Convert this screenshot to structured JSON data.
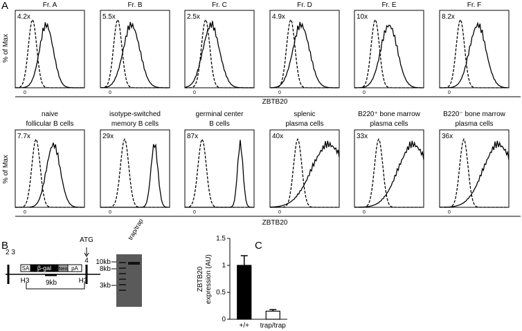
{
  "panel_a": {
    "label": "A",
    "y_label": "% of Max",
    "x_label": "ZBTB20",
    "axis_zero": "0",
    "row1": [
      {
        "title": "Fr. A",
        "fold": "4.2x"
      },
      {
        "title": "Fr. B",
        "fold": "5.5x"
      },
      {
        "title": "Fr. C",
        "fold": "2.5x"
      },
      {
        "title": "Fr. D",
        "fold": "4.9x"
      },
      {
        "title": "Fr. E",
        "fold": "10x"
      },
      {
        "title": "Fr. F",
        "fold": "8.2x"
      }
    ],
    "row2": [
      {
        "title": [
          "naive",
          "follicular B cells"
        ],
        "fold": "7.7x"
      },
      {
        "title": [
          "isotype-switched",
          "memory B cells"
        ],
        "fold": "29x"
      },
      {
        "title": [
          "germinal center",
          "B cells"
        ],
        "fold": "87x"
      },
      {
        "title": [
          "splenic",
          "plasma cells"
        ],
        "fold": "40x"
      },
      {
        "title": [
          "B220⁺ bone marrow",
          "plasma cells"
        ],
        "fold": "33x"
      },
      {
        "title": [
          "B220⁻ bone marrow",
          "plasma cells"
        ],
        "fold": "36x"
      }
    ]
  },
  "panel_b": {
    "label": "B",
    "exons_left": "2 3",
    "atg": "ATG",
    "exon_right": "4",
    "sa": "SA",
    "bgal": "β-gal",
    "neo": "Neo",
    "pa": "pA",
    "h3_left": "H3",
    "h3_right": "H3",
    "fragment": "9kb",
    "lane": "trap/trap",
    "markers": [
      "10kb",
      "8kb",
      "3kb"
    ]
  },
  "chart_data": {
    "type": "bar",
    "label": "C",
    "y_label": [
      "ZBTB20",
      "expression (AU)"
    ],
    "categories": [
      "+/+",
      "trap/trap"
    ],
    "values": [
      1,
      0.15
    ],
    "errors": [
      0.18,
      0.03
    ],
    "colors": [
      "#000000",
      "#ffffff"
    ],
    "ylim": [
      0,
      1.5
    ],
    "yticks": [
      0,
      0.5,
      1,
      1.5
    ]
  }
}
